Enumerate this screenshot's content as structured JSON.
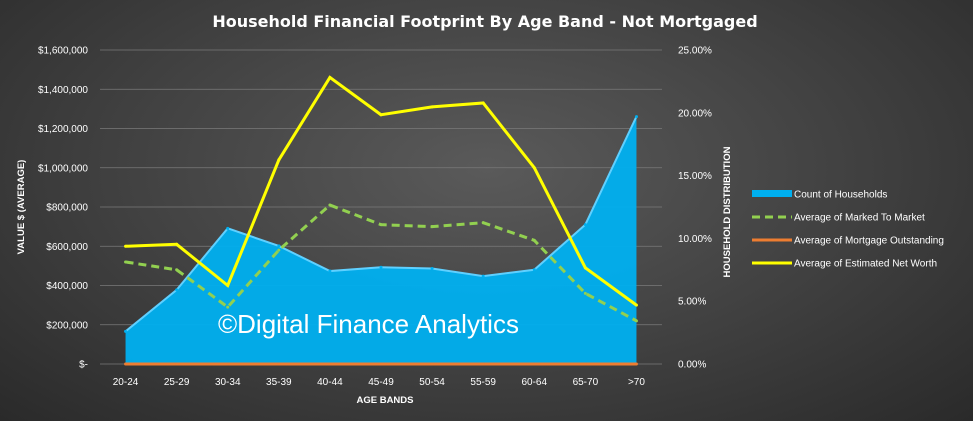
{
  "chart_data": {
    "type": "line",
    "title": "Household Financial Footprint By Age Band - Not Mortgaged",
    "xlabel": "AGE BANDS",
    "ylabel": "VALUE $ (AVERAGE)",
    "y2label": "HOUSEHOLD DISTRIBUTION",
    "ylim": [
      0,
      1600000
    ],
    "y2lim": [
      0,
      0.25
    ],
    "yticks": [
      "$-",
      "$200,000",
      "$400,000",
      "$600,000",
      "$800,000",
      "$1,000,000",
      "$1,200,000",
      "$1,400,000",
      "$1,600,000"
    ],
    "y2ticks": [
      "0.00%",
      "5.00%",
      "10.00%",
      "15.00%",
      "20.00%",
      "25.00%"
    ],
    "categories": [
      "20-24",
      "25-29",
      "30-34",
      "35-39",
      "40-44",
      "45-49",
      "50-54",
      "55-59",
      "60-64",
      "65-70",
      ">70"
    ],
    "grid": true,
    "legend_position": "right",
    "series": [
      {
        "name": "Count of Households",
        "type": "area",
        "axis": "right",
        "color": "#00b0f0",
        "values": [
          0.026,
          0.059,
          0.108,
          0.094,
          0.074,
          0.077,
          0.076,
          0.07,
          0.075,
          0.111,
          0.197
        ]
      },
      {
        "name": "Average of Marked To Market",
        "type": "line",
        "axis": "left",
        "color": "#92d050",
        "dash": true,
        "values": [
          520000,
          480000,
          290000,
          580000,
          810000,
          710000,
          700000,
          720000,
          630000,
          360000,
          220000
        ]
      },
      {
        "name": "Average of Mortgage Outstanding",
        "type": "line",
        "axis": "left",
        "color": "#ed7d31",
        "values": [
          0,
          0,
          0,
          0,
          0,
          0,
          0,
          0,
          0,
          0,
          0
        ]
      },
      {
        "name": "Average of Estimated Net Worth",
        "type": "line",
        "axis": "left",
        "color": "#ffff00",
        "values": [
          600000,
          610000,
          400000,
          1040000,
          1460000,
          1270000,
          1310000,
          1330000,
          1000000,
          490000,
          300000
        ]
      }
    ]
  },
  "watermark": "©Digital Finance Analytics"
}
